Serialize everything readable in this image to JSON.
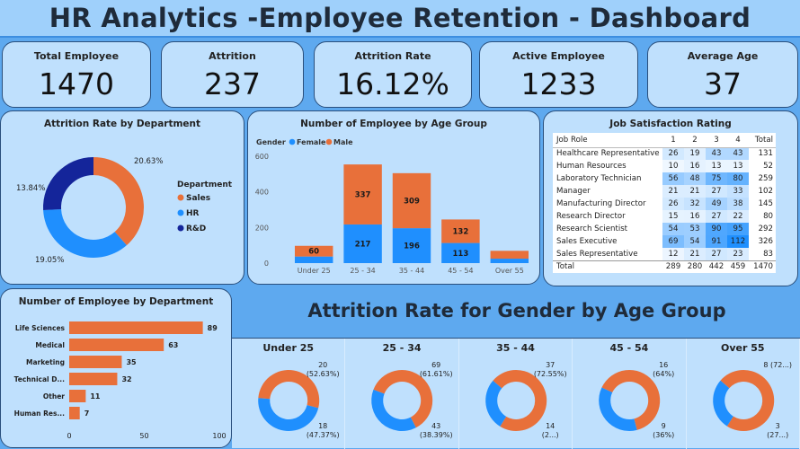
{
  "title": "HR Analytics -Employee Retention - Dashboard",
  "kpis": [
    {
      "label": "Total Employee",
      "value": "1470"
    },
    {
      "label": "Attrition",
      "value": "237"
    },
    {
      "label": "Attrition Rate",
      "value": "16.12%"
    },
    {
      "label": "Active Employee",
      "value": "1233"
    },
    {
      "label": "Average Age",
      "value": "37"
    }
  ],
  "colors": {
    "sales": "#e8703a",
    "hr": "#1f8ffe",
    "rnd": "#14259a",
    "female": "#1f8ffe",
    "male": "#e8703a"
  },
  "dept_panel": {
    "title": "Attrition Rate by Department",
    "legend_title": "Department"
  },
  "age_panel": {
    "title": "Number of Employee by Age Group",
    "legend_title": "Gender"
  },
  "job_panel": {
    "title": "Job Satisfaction Rating"
  },
  "emp_dept_panel": {
    "title": "Number of Employee by Department"
  },
  "gender_panel": {
    "title": "Attrition Rate for Gender by Age Group"
  },
  "chart_data": [
    {
      "id": "attrition_by_department",
      "type": "pie",
      "title": "Attrition Rate by Department",
      "legend_title": "Department",
      "slices": [
        {
          "label": "Sales",
          "value": 20.63,
          "display": "20.63%"
        },
        {
          "label": "HR",
          "value": 19.05,
          "display": "19.05%"
        },
        {
          "label": "R&D",
          "value": 13.84,
          "display": "13.84%"
        }
      ]
    },
    {
      "id": "employees_by_age_group",
      "type": "bar",
      "stacked": true,
      "title": "Number of Employee by Age Group",
      "legend_title": "Gender",
      "categories": [
        "Under 25",
        "25 - 34",
        "35 - 44",
        "45 - 54",
        "Over 55"
      ],
      "series": [
        {
          "name": "Female",
          "values": [
            37,
            217,
            196,
            113,
            25
          ],
          "labels": [
            "",
            "217",
            "196",
            "113",
            ""
          ]
        },
        {
          "name": "Male",
          "values": [
            60,
            337,
            309,
            132,
            44
          ],
          "labels": [
            "60",
            "337",
            "309",
            "132",
            ""
          ]
        }
      ],
      "yticks": [
        "0",
        "200",
        "400",
        "600"
      ],
      "ylim": [
        0,
        600
      ]
    },
    {
      "id": "job_satisfaction",
      "type": "table",
      "title": "Job Satisfaction Rating",
      "columns": [
        "Job Role",
        "1",
        "2",
        "3",
        "4",
        "Total"
      ],
      "rows": [
        [
          "Healthcare Representative",
          "26",
          "19",
          "43",
          "43",
          "131"
        ],
        [
          "Human Resources",
          "10",
          "16",
          "13",
          "13",
          "52"
        ],
        [
          "Laboratory Technician",
          "56",
          "48",
          "75",
          "80",
          "259"
        ],
        [
          "Manager",
          "21",
          "21",
          "27",
          "33",
          "102"
        ],
        [
          "Manufacturing Director",
          "26",
          "32",
          "49",
          "38",
          "145"
        ],
        [
          "Research Director",
          "15",
          "16",
          "27",
          "22",
          "80"
        ],
        [
          "Research Scientist",
          "54",
          "53",
          "90",
          "95",
          "292"
        ],
        [
          "Sales Executive",
          "69",
          "54",
          "91",
          "112",
          "326"
        ],
        [
          "Sales Representative",
          "12",
          "21",
          "27",
          "23",
          "83"
        ],
        [
          "Total",
          "289",
          "280",
          "442",
          "459",
          "1470"
        ]
      ]
    },
    {
      "id": "employees_by_department",
      "type": "bar",
      "orientation": "horizontal",
      "title": "Number of Employee by Department",
      "categories": [
        "Life Sciences",
        "Medical",
        "Marketing",
        "Technical D...",
        "Other",
        "Human Res..."
      ],
      "values": [
        89,
        63,
        35,
        32,
        11,
        7
      ],
      "xticks": [
        "0",
        "50",
        "100"
      ],
      "xlim": [
        0,
        100
      ]
    },
    {
      "id": "gender_attrition_by_age",
      "type": "pie",
      "title": "Attrition Rate for Gender by Age Group",
      "groups": [
        {
          "name": "Under 25",
          "male": 20,
          "female": 18,
          "male_label": "20",
          "male_pct": "(52.63%)",
          "female_label": "18",
          "female_pct": "(47.37%)"
        },
        {
          "name": "25 - 34",
          "male": 69,
          "female": 43,
          "male_label": "69",
          "male_pct": "(61.61%)",
          "female_label": "43",
          "female_pct": "(38.39%)"
        },
        {
          "name": "35 - 44",
          "male": 37,
          "female": 14,
          "male_label": "37",
          "male_pct": "(72.55%)",
          "female_label": "14",
          "female_pct": "(2...)"
        },
        {
          "name": "45 - 54",
          "male": 16,
          "female": 9,
          "male_label": "16",
          "male_pct": "(64%)",
          "female_label": "9",
          "female_pct": "(36%)"
        },
        {
          "name": "Over 55",
          "male": 8,
          "female": 3,
          "male_label": "8 (72...)",
          "male_pct": "",
          "female_label": "3",
          "female_pct": "(27...)"
        }
      ]
    }
  ]
}
